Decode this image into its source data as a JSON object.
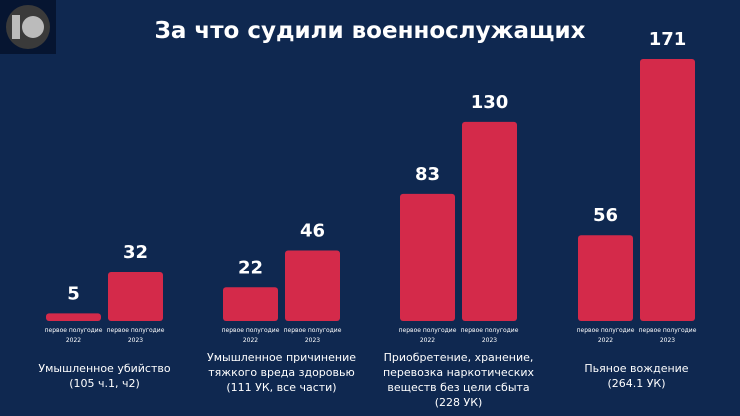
{
  "logo": {
    "text": "10",
    "icon": "logo-circle"
  },
  "chart_data": {
    "type": "bar",
    "title": "За что судили военнослужащих",
    "ylim": [
      0,
      171
    ],
    "grid": false,
    "bar_color": "#d42a4a",
    "background": "#0f2850",
    "series_labels": [
      "первое полугодие 2022",
      "первое полугодие 2023"
    ],
    "categories": [
      {
        "label": [
          "Умышленное убийство",
          "(105 ч.1, ч2)"
        ],
        "values": [
          5,
          32
        ]
      },
      {
        "label": [
          "Умышленное причинение",
          "тяжкого вреда здоровью",
          "(111 УК, все части)"
        ],
        "values": [
          22,
          46
        ]
      },
      {
        "label": [
          "Приобретение, хранение,",
          "перевозка наркотических",
          "веществ без цели сбыта",
          "(228 УК)"
        ],
        "values": [
          83,
          130
        ]
      },
      {
        "label": [
          "Пьяное вождение",
          "(264.1 УК)"
        ],
        "values": [
          56,
          171
        ]
      }
    ]
  }
}
